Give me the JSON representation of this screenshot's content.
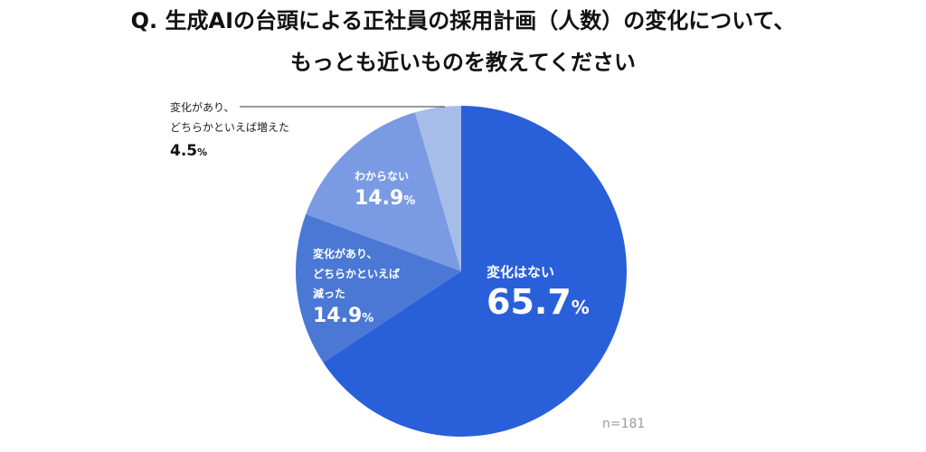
{
  "title_line1": "Q. 生成AIの台頭による正社員の採用計画（人数）の変化について、",
  "title_line2": "もっとも近いものを教えてください",
  "note": "n=181",
  "unit": "%",
  "colors": {
    "no_change": "#2a5fda",
    "decrease": "#4a78d4",
    "unknown": "#7a9be3",
    "increase": "#a6bde9"
  },
  "labels": {
    "no_change": {
      "name": "変化はない",
      "value": "65.7"
    },
    "decrease": {
      "line1": "変化があり、",
      "line2": "どちらかといえば",
      "line3": "減った",
      "value": "14.9"
    },
    "unknown": {
      "name": "わからない",
      "value": "14.9"
    },
    "increase": {
      "line1": "変化があり、",
      "line2": "どちらかといえば増えた",
      "value": "4.5"
    }
  },
  "chart_data": {
    "type": "pie",
    "start": "12 o'clock",
    "direction": "clockwise",
    "categories": [
      "変化はない",
      "変化があり、どちらかといえば減った",
      "わからない",
      "変化があり、どちらかといえば増えた"
    ],
    "values": [
      65.7,
      14.9,
      14.9,
      4.5
    ],
    "unit": "%",
    "n": 181
  }
}
